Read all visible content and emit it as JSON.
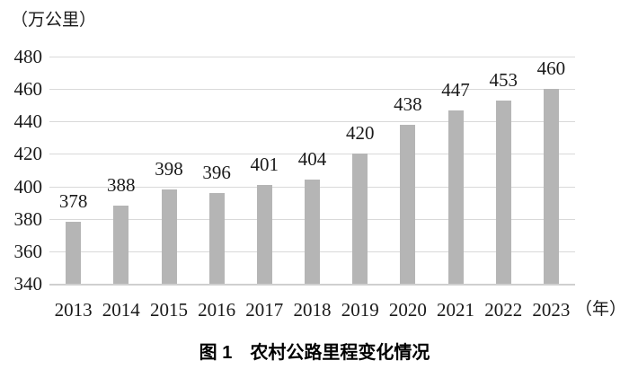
{
  "chart_data": {
    "type": "bar",
    "title": "图 1　农村公路里程变化情况",
    "y_axis_unit": "（万公里）",
    "x_axis_unit": "（年）",
    "categories": [
      "2013",
      "2014",
      "2015",
      "2016",
      "2017",
      "2018",
      "2019",
      "2020",
      "2021",
      "2022",
      "2023"
    ],
    "values": [
      378,
      388,
      398,
      396,
      401,
      404,
      420,
      438,
      447,
      453,
      460
    ],
    "yticks": [
      340,
      360,
      380,
      400,
      420,
      440,
      460,
      480
    ],
    "ylim": [
      340,
      480
    ],
    "grid": true,
    "legend": "none",
    "data_labels": "outside-end",
    "bar_color": "#b5b5b5",
    "grid_color": "#d9d9d9",
    "baseline_color": "#cfcfcf",
    "text_color": "#1a1a1a"
  }
}
